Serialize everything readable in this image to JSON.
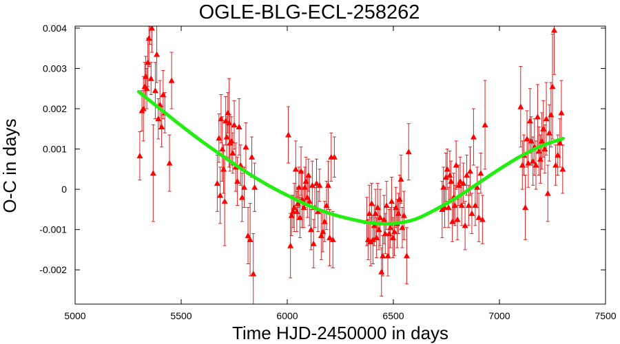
{
  "chart_data": {
    "type": "scatter",
    "title": "OGLE-BLG-ECL-258262",
    "xlabel": "Time HJD-2450000 in days",
    "ylabel": "O-C in days",
    "xlim": [
      5000,
      7500
    ],
    "ylim": [
      -0.00285,
      0.00405
    ],
    "xticks": [
      5000,
      5500,
      6000,
      6500,
      7000,
      7500
    ],
    "xtick_labels": [
      "5000",
      "5500",
      "6000",
      "6500",
      "7000",
      "7500"
    ],
    "yticks": [
      -0.002,
      -0.001,
      0,
      0.001,
      0.002,
      0.003,
      0.004
    ],
    "ytick_labels": [
      "-0.002",
      "-0.001",
      "0",
      "0.001",
      "0.002",
      "0.003",
      "0.004"
    ],
    "grid": false,
    "series": [
      {
        "marker": "triangle",
        "color": "#ff0000",
        "points": [
          {
            "x": 5305,
            "y": 0.00083,
            "err": 0.0006
          },
          {
            "x": 5315,
            "y": 0.00195,
            "err": 0.0005
          },
          {
            "x": 5322,
            "y": 0.002,
            "err": 0.0008
          },
          {
            "x": 5328,
            "y": 0.00255,
            "err": 0.0006
          },
          {
            "x": 5333,
            "y": 0.0028,
            "err": 0.0005
          },
          {
            "x": 5338,
            "y": 0.0025,
            "err": 0.0005
          },
          {
            "x": 5343,
            "y": 0.00315,
            "err": 0.0006
          },
          {
            "x": 5348,
            "y": 0.00375,
            "err": 0.0007
          },
          {
            "x": 5353,
            "y": 0.0041,
            "err": 0.0005
          },
          {
            "x": 5358,
            "y": 0.00275,
            "err": 0.0004
          },
          {
            "x": 5362,
            "y": 0.004,
            "err": 0.0006
          },
          {
            "x": 5368,
            "y": 0.0004,
            "err": 0.0012
          },
          {
            "x": 5378,
            "y": 0.00245,
            "err": 0.0007
          },
          {
            "x": 5385,
            "y": 0.00335,
            "err": 0.0007
          },
          {
            "x": 5392,
            "y": 0.00175,
            "err": 0.0005
          },
          {
            "x": 5400,
            "y": 0.0021,
            "err": 0.0006
          },
          {
            "x": 5408,
            "y": 0.00155,
            "err": 0.0005
          },
          {
            "x": 5415,
            "y": 0.00235,
            "err": 0.0006
          },
          {
            "x": 5423,
            "y": 0.0019,
            "err": 0.0005
          },
          {
            "x": 5445,
            "y": 0.00065,
            "err": 0.0007
          },
          {
            "x": 5455,
            "y": 0.0027,
            "err": 0.0007
          },
          {
            "x": 5670,
            "y": 0.00015,
            "err": 0.0007
          },
          {
            "x": 5678,
            "y": 0.00127,
            "err": 0.0006
          },
          {
            "x": 5684,
            "y": -0.00015,
            "err": 0.0007
          },
          {
            "x": 5688,
            "y": 0.00175,
            "err": 0.0006
          },
          {
            "x": 5694,
            "y": 0.001,
            "err": 0.0008
          },
          {
            "x": 5700,
            "y": 0.0005,
            "err": 0.0006
          },
          {
            "x": 5705,
            "y": -0.0003,
            "err": 0.0011
          },
          {
            "x": 5710,
            "y": 0.0017,
            "err": 0.0006
          },
          {
            "x": 5715,
            "y": 0.0013,
            "err": 0.0005
          },
          {
            "x": 5720,
            "y": 0.0019,
            "err": 0.0005
          },
          {
            "x": 5726,
            "y": 0.00165,
            "err": 0.0011
          },
          {
            "x": 5730,
            "y": 0.00115,
            "err": 0.0007
          },
          {
            "x": 5737,
            "y": 0.0012,
            "err": 0.0006
          },
          {
            "x": 5743,
            "y": 0.0009,
            "err": 0.0005
          },
          {
            "x": 5750,
            "y": 0.0016,
            "err": 0.0006
          },
          {
            "x": 5757,
            "y": 0.00055,
            "err": 0.0006
          },
          {
            "x": 5765,
            "y": 0.0002,
            "err": 0.0006
          },
          {
            "x": 5773,
            "y": 0.00155,
            "err": 0.0007
          },
          {
            "x": 5780,
            "y": 0.0006,
            "err": 0.0005
          },
          {
            "x": 5787,
            "y": -0.0002,
            "err": 0.0006
          },
          {
            "x": 5797,
            "y": 5e-05,
            "err": 0.0005
          },
          {
            "x": 5805,
            "y": 0.00105,
            "err": 0.0006
          },
          {
            "x": 5815,
            "y": -0.00115,
            "err": 0.0007
          },
          {
            "x": 5825,
            "y": -0.00125,
            "err": 0.0009
          },
          {
            "x": 5833,
            "y": 0.0008,
            "err": 0.0005
          },
          {
            "x": 5840,
            "y": -0.0021,
            "err": 0.001
          },
          {
            "x": 5846,
            "y": 5e-05,
            "err": 0.0006
          },
          {
            "x": 6005,
            "y": 0.00135,
            "err": 0.0007
          },
          {
            "x": 6015,
            "y": -0.0014,
            "err": 0.0008
          },
          {
            "x": 6020,
            "y": -0.00065,
            "err": 0.0005
          },
          {
            "x": 6027,
            "y": -0.00055,
            "err": 0.0004
          },
          {
            "x": 6033,
            "y": -0.00045,
            "err": 0.0006
          },
          {
            "x": 6040,
            "y": 0.0005,
            "err": 0.0007
          },
          {
            "x": 6045,
            "y": -0.00055,
            "err": 0.0005
          },
          {
            "x": 6050,
            "y": -0.00035,
            "err": 0.0004
          },
          {
            "x": 6055,
            "y": 5e-05,
            "err": 0.0005
          },
          {
            "x": 6060,
            "y": -0.0007,
            "err": 0.0005
          },
          {
            "x": 6065,
            "y": 0.00045,
            "err": 0.0006
          },
          {
            "x": 6070,
            "y": -0.00025,
            "err": 0.0007
          },
          {
            "x": 6078,
            "y": -0.00045,
            "err": 0.0005
          },
          {
            "x": 6083,
            "y": 5e-05,
            "err": 0.0005
          },
          {
            "x": 6088,
            "y": 0.0002,
            "err": 0.0006
          },
          {
            "x": 6095,
            "y": -0.0002,
            "err": 0.0005
          },
          {
            "x": 6100,
            "y": 0.00035,
            "err": 0.0004
          },
          {
            "x": 6105,
            "y": -0.0003,
            "err": 0.0006
          },
          {
            "x": 6112,
            "y": -0.001,
            "err": 0.0005
          },
          {
            "x": 6118,
            "y": 0.0001,
            "err": 0.0006
          },
          {
            "x": 6124,
            "y": -0.00135,
            "err": 0.0006
          },
          {
            "x": 6130,
            "y": -0.00045,
            "err": 0.0005
          },
          {
            "x": 6138,
            "y": 0.00015,
            "err": 0.0006
          },
          {
            "x": 6145,
            "y": -0.00055,
            "err": 0.0005
          },
          {
            "x": 6152,
            "y": 0.0001,
            "err": 0.0004
          },
          {
            "x": 6160,
            "y": -0.00115,
            "err": 0.0006
          },
          {
            "x": 6168,
            "y": -0.00105,
            "err": 0.0005
          },
          {
            "x": 6176,
            "y": -0.0008,
            "err": 0.0005
          },
          {
            "x": 6185,
            "y": -0.0004,
            "err": 0.0006
          },
          {
            "x": 6193,
            "y": 0.0001,
            "err": 0.0006
          },
          {
            "x": 6200,
            "y": -0.0012,
            "err": 0.0007
          },
          {
            "x": 6207,
            "y": 0.0008,
            "err": 0.0006
          },
          {
            "x": 6215,
            "y": -0.00125,
            "err": 0.0007
          },
          {
            "x": 6222,
            "y": 0.0008,
            "err": 0.0005
          },
          {
            "x": 6375,
            "y": -0.0008,
            "err": 0.0006
          },
          {
            "x": 6381,
            "y": -0.00125,
            "err": 0.0005
          },
          {
            "x": 6387,
            "y": -0.0006,
            "err": 0.0007
          },
          {
            "x": 6393,
            "y": -0.0013,
            "err": 0.0006
          },
          {
            "x": 6398,
            "y": -0.00035,
            "err": 0.0005
          },
          {
            "x": 6404,
            "y": -0.00125,
            "err": 0.0006
          },
          {
            "x": 6410,
            "y": -0.0009,
            "err": 0.0005
          },
          {
            "x": 6416,
            "y": -0.0006,
            "err": 0.0006
          },
          {
            "x": 6421,
            "y": -0.0012,
            "err": 0.0005
          },
          {
            "x": 6426,
            "y": -0.00045,
            "err": 0.0006
          },
          {
            "x": 6432,
            "y": -0.001,
            "err": 0.0005
          },
          {
            "x": 6438,
            "y": -0.0007,
            "err": 0.0007
          },
          {
            "x": 6444,
            "y": -0.00205,
            "err": 0.0006
          },
          {
            "x": 6450,
            "y": -0.00165,
            "err": 0.0005
          },
          {
            "x": 6456,
            "y": -0.00075,
            "err": 0.0006
          },
          {
            "x": 6462,
            "y": -0.0011,
            "err": 0.0005
          },
          {
            "x": 6468,
            "y": -0.0004,
            "err": 0.0006
          },
          {
            "x": 6474,
            "y": -0.00165,
            "err": 0.0005
          },
          {
            "x": 6480,
            "y": -0.0011,
            "err": 0.0006
          },
          {
            "x": 6486,
            "y": -0.00095,
            "err": 0.0005
          },
          {
            "x": 6492,
            "y": -0.0003,
            "err": 0.0006
          },
          {
            "x": 6498,
            "y": -0.0012,
            "err": 0.0005
          },
          {
            "x": 6505,
            "y": -0.00105,
            "err": 0.0006
          },
          {
            "x": 6512,
            "y": -0.00045,
            "err": 0.0005
          },
          {
            "x": 6518,
            "y": -0.00085,
            "err": 0.0006
          },
          {
            "x": 6524,
            "y": -0.0006,
            "err": 0.0005
          },
          {
            "x": 6530,
            "y": -0.00025,
            "err": 0.0006
          },
          {
            "x": 6536,
            "y": 0.00025,
            "err": 0.0006
          },
          {
            "x": 6542,
            "y": -0.00095,
            "err": 0.0005
          },
          {
            "x": 6550,
            "y": -0.00065,
            "err": 0.0006
          },
          {
            "x": 6563,
            "y": -0.00165,
            "err": 0.0007
          },
          {
            "x": 6572,
            "y": 0.00093,
            "err": 0.0007
          },
          {
            "x": 6730,
            "y": -0.0005,
            "err": 0.0007
          },
          {
            "x": 6736,
            "y": 5e-05,
            "err": 0.0005
          },
          {
            "x": 6742,
            "y": -0.00045,
            "err": 0.0005
          },
          {
            "x": 6748,
            "y": 0.0003,
            "err": 0.0006
          },
          {
            "x": 6754,
            "y": 0.0005,
            "err": 0.0005
          },
          {
            "x": 6760,
            "y": -0.00045,
            "err": 0.0005
          },
          {
            "x": 6766,
            "y": 0.00035,
            "err": 0.0006
          },
          {
            "x": 6772,
            "y": 0.0002,
            "err": 0.0005
          },
          {
            "x": 6778,
            "y": -0.0008,
            "err": 0.0005
          },
          {
            "x": 6784,
            "y": -0.0002,
            "err": 0.0006
          },
          {
            "x": 6790,
            "y": -0.0004,
            "err": 0.0005
          },
          {
            "x": 6796,
            "y": 0.0006,
            "err": 0.0006
          },
          {
            "x": 6802,
            "y": -0.00075,
            "err": 0.0005
          },
          {
            "x": 6808,
            "y": 0.0001,
            "err": 0.0005
          },
          {
            "x": 6815,
            "y": 0.0002,
            "err": 0.0006
          },
          {
            "x": 6822,
            "y": -0.0004,
            "err": 0.0005
          },
          {
            "x": 6830,
            "y": 0.00015,
            "err": 0.0005
          },
          {
            "x": 6838,
            "y": -0.0009,
            "err": 0.0006
          },
          {
            "x": 6846,
            "y": 0.00035,
            "err": 0.0005
          },
          {
            "x": 6855,
            "y": -0.0004,
            "err": 0.0005
          },
          {
            "x": 6862,
            "y": 0.00045,
            "err": 0.0006
          },
          {
            "x": 6870,
            "y": -0.0006,
            "err": 0.0005
          },
          {
            "x": 6878,
            "y": 0.0013,
            "err": 0.0007
          },
          {
            "x": 6886,
            "y": -0.0004,
            "err": 0.0005
          },
          {
            "x": 6895,
            "y": 5e-05,
            "err": 0.0005
          },
          {
            "x": 6903,
            "y": -0.0007,
            "err": 0.0006
          },
          {
            "x": 6912,
            "y": 0.0004,
            "err": 0.0005
          },
          {
            "x": 6920,
            "y": -0.00075,
            "err": 0.0006
          },
          {
            "x": 6932,
            "y": 0.0016,
            "err": 0.0011
          },
          {
            "x": 7100,
            "y": 0.00205,
            "err": 0.001
          },
          {
            "x": 7108,
            "y": 0.0006,
            "err": 0.0006
          },
          {
            "x": 7115,
            "y": 0.00085,
            "err": 0.0005
          },
          {
            "x": 7122,
            "y": -0.00045,
            "err": 0.0008
          },
          {
            "x": 7130,
            "y": 0.00125,
            "err": 0.0007
          },
          {
            "x": 7136,
            "y": 0.00065,
            "err": 0.0006
          },
          {
            "x": 7144,
            "y": 0.0017,
            "err": 0.0008
          },
          {
            "x": 7150,
            "y": 0.0012,
            "err": 0.0006
          },
          {
            "x": 7158,
            "y": 0.0007,
            "err": 0.0006
          },
          {
            "x": 7165,
            "y": 0.00105,
            "err": 0.0007
          },
          {
            "x": 7172,
            "y": 0.0006,
            "err": 0.0006
          },
          {
            "x": 7180,
            "y": 0.0018,
            "err": 0.0008
          },
          {
            "x": 7186,
            "y": 0.00095,
            "err": 0.0006
          },
          {
            "x": 7193,
            "y": 0.00075,
            "err": 0.0006
          },
          {
            "x": 7200,
            "y": 0.0012,
            "err": 0.0007
          },
          {
            "x": 7207,
            "y": 0.0015,
            "err": 0.0007
          },
          {
            "x": 7214,
            "y": 0.001,
            "err": 0.0006
          },
          {
            "x": 7221,
            "y": 0.00175,
            "err": 0.0009
          },
          {
            "x": 7228,
            "y": -0.0001,
            "err": 0.0007
          },
          {
            "x": 7235,
            "y": 0.0014,
            "err": 0.0007
          },
          {
            "x": 7243,
            "y": 0.00185,
            "err": 0.0008
          },
          {
            "x": 7250,
            "y": 0.00255,
            "err": 0.0013
          },
          {
            "x": 7258,
            "y": 0.00395,
            "err": 0.0011
          },
          {
            "x": 7265,
            "y": 0.0006,
            "err": 0.0005
          },
          {
            "x": 7275,
            "y": 0.00085,
            "err": 0.0005
          },
          {
            "x": 7285,
            "y": 0.00115,
            "err": 0.0006
          },
          {
            "x": 7292,
            "y": 0.0019,
            "err": 0.0008
          },
          {
            "x": 7298,
            "y": 0.0005,
            "err": 0.0006
          }
        ]
      },
      {
        "type": "line",
        "color": "#22ee11",
        "x": [
          5300,
          5400,
          5500,
          5600,
          5700,
          5800,
          5900,
          6000,
          6100,
          6200,
          6300,
          6400,
          6500,
          6600,
          6700,
          6800,
          6900,
          7000,
          7100,
          7200,
          7300
        ],
        "y": [
          0.00242,
          0.002,
          0.00158,
          0.00118,
          0.00081,
          0.00045,
          0.00013,
          -0.00015,
          -0.0004,
          -0.0006,
          -0.00074,
          -0.00084,
          -0.00085,
          -0.00075,
          -0.0005,
          -0.0002,
          0.00015,
          0.0005,
          0.00082,
          0.00108,
          0.00126
        ]
      }
    ]
  }
}
